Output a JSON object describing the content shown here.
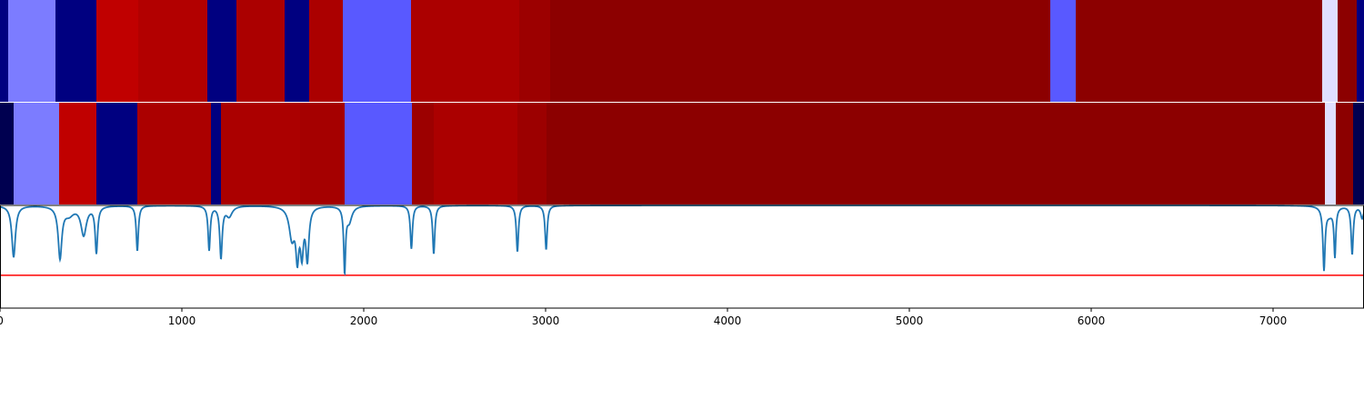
{
  "chart_data": {
    "type": "heatmap",
    "title": "",
    "xlabel": "",
    "ylabel": "",
    "xlim": [
      0,
      7500
    ],
    "x_ticks": [
      0,
      1000,
      2000,
      3000,
      4000,
      5000,
      6000,
      7000
    ],
    "x_tick_labels": [
      "0",
      "1000",
      "2000",
      "3000",
      "4000",
      "5000",
      "6000",
      "7000"
    ],
    "rows": [
      {
        "segments": [
          {
            "start": 0,
            "end": 45,
            "color": "#000080"
          },
          {
            "start": 45,
            "end": 305,
            "color": "#7c7cff"
          },
          {
            "start": 305,
            "end": 530,
            "color": "#000080"
          },
          {
            "start": 530,
            "end": 760,
            "color": "#c00000"
          },
          {
            "start": 760,
            "end": 1140,
            "color": "#b20000"
          },
          {
            "start": 1140,
            "end": 1300,
            "color": "#000080"
          },
          {
            "start": 1300,
            "end": 1565,
            "color": "#ab0000"
          },
          {
            "start": 1565,
            "end": 1700,
            "color": "#000080"
          },
          {
            "start": 1700,
            "end": 1885,
            "color": "#ab0000"
          },
          {
            "start": 1885,
            "end": 2260,
            "color": "#5959ff"
          },
          {
            "start": 2260,
            "end": 2855,
            "color": "#ab0000"
          },
          {
            "start": 2855,
            "end": 3025,
            "color": "#9c0000"
          },
          {
            "start": 3025,
            "end": 5775,
            "color": "#8c0000"
          },
          {
            "start": 5775,
            "end": 5915,
            "color": "#5959ff"
          },
          {
            "start": 5915,
            "end": 7270,
            "color": "#8c0000"
          },
          {
            "start": 7270,
            "end": 7355,
            "color": "#e0e0ff"
          },
          {
            "start": 7355,
            "end": 7460,
            "color": "#8c0000"
          },
          {
            "start": 7460,
            "end": 7500,
            "color": "#000080"
          }
        ]
      },
      {
        "segments": [
          {
            "start": 0,
            "end": 75,
            "color": "#000050"
          },
          {
            "start": 75,
            "end": 325,
            "color": "#7c7cff"
          },
          {
            "start": 325,
            "end": 530,
            "color": "#c00000"
          },
          {
            "start": 530,
            "end": 755,
            "color": "#000080"
          },
          {
            "start": 755,
            "end": 1160,
            "color": "#ab0000"
          },
          {
            "start": 1160,
            "end": 1215,
            "color": "#000080"
          },
          {
            "start": 1215,
            "end": 1650,
            "color": "#ab0000"
          },
          {
            "start": 1650,
            "end": 1895,
            "color": "#a50000"
          },
          {
            "start": 1895,
            "end": 2265,
            "color": "#5959ff"
          },
          {
            "start": 2265,
            "end": 2385,
            "color": "#9c0000"
          },
          {
            "start": 2385,
            "end": 2845,
            "color": "#ab0000"
          },
          {
            "start": 2845,
            "end": 3005,
            "color": "#9c0000"
          },
          {
            "start": 3005,
            "end": 7285,
            "color": "#8c0000"
          },
          {
            "start": 7285,
            "end": 7345,
            "color": "#e0e0ff"
          },
          {
            "start": 7345,
            "end": 7440,
            "color": "#8c0000"
          },
          {
            "start": 7440,
            "end": 7500,
            "color": "#000050"
          }
        ]
      }
    ],
    "line": {
      "color": "#1f77b4",
      "ylim": [
        0,
        1
      ],
      "baseline": 1.0,
      "dips": [
        {
          "x": 75,
          "depth": 0.5,
          "width": 12
        },
        {
          "x": 330,
          "depth": 0.5,
          "width": 12
        },
        {
          "x": 380,
          "depth": 0.08,
          "width": 30
        },
        {
          "x": 460,
          "depth": 0.28,
          "width": 18
        },
        {
          "x": 530,
          "depth": 0.45,
          "width": 8
        },
        {
          "x": 755,
          "depth": 0.44,
          "width": 7
        },
        {
          "x": 1150,
          "depth": 0.43,
          "width": 7
        },
        {
          "x": 1215,
          "depth": 0.5,
          "width": 8
        },
        {
          "x": 1260,
          "depth": 0.1,
          "width": 20
        },
        {
          "x": 1605,
          "depth": 0.3,
          "width": 18
        },
        {
          "x": 1635,
          "depth": 0.45,
          "width": 10
        },
        {
          "x": 1660,
          "depth": 0.42,
          "width": 10
        },
        {
          "x": 1690,
          "depth": 0.5,
          "width": 10
        },
        {
          "x": 1895,
          "depth": 0.62,
          "width": 6
        },
        {
          "x": 1920,
          "depth": 0.15,
          "width": 18
        },
        {
          "x": 2262,
          "depth": 0.42,
          "width": 7
        },
        {
          "x": 2385,
          "depth": 0.47,
          "width": 7
        },
        {
          "x": 2845,
          "depth": 0.45,
          "width": 7
        },
        {
          "x": 3003,
          "depth": 0.43,
          "width": 7
        },
        {
          "x": 7280,
          "depth": 0.6,
          "width": 7
        },
        {
          "x": 7310,
          "depth": 0.08,
          "width": 25
        },
        {
          "x": 7340,
          "depth": 0.47,
          "width": 6
        },
        {
          "x": 7435,
          "depth": 0.47,
          "width": 7
        },
        {
          "x": 7490,
          "depth": 0.12,
          "width": 10
        }
      ]
    },
    "threshold": {
      "y": 0.32,
      "color": "#ff0000"
    }
  }
}
